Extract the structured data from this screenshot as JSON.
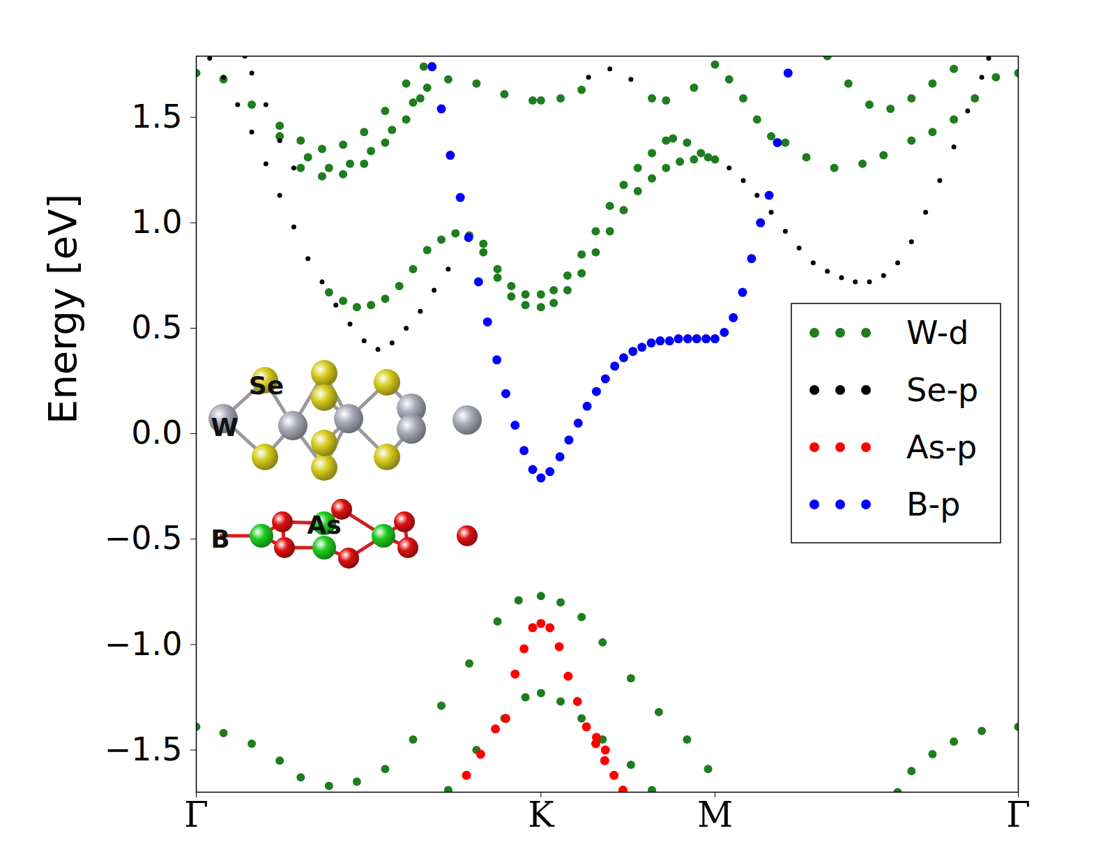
{
  "chart_data": {
    "type": "scatter",
    "y_label": "Energy [eV]",
    "xlim": [
      0,
      2.385
    ],
    "ylim": [
      -1.7,
      1.79
    ],
    "xticks": [
      {
        "value": 0,
        "label": "Γ"
      },
      {
        "value": 1,
        "label": "K"
      },
      {
        "value": 1.505,
        "label": "M"
      },
      {
        "value": 2.385,
        "label": "Γ"
      }
    ],
    "yticks": [
      {
        "value": -1.5,
        "label": "−1.5"
      },
      {
        "value": -1,
        "label": "−1.0"
      },
      {
        "value": -0.5,
        "label": "−0.5"
      },
      {
        "value": 0,
        "label": "0.0"
      },
      0.5,
      {
        "value": 1,
        "label": "1.0"
      },
      1.5
    ],
    "grid": false,
    "legend": "right",
    "annotations": [
      "Se",
      "W",
      "B",
      "As"
    ],
    "series": [
      {
        "name": "W-d",
        "color": "#1e7d1e",
        "marker": "o",
        "x": [
          0.385,
          0.426,
          0.466,
          0.507,
          0.548,
          0.589,
          0.629,
          0.67,
          0.711,
          0.752,
          0.792,
          0.833,
          0.874,
          0.914,
          0.955,
          1.0,
          1.037,
          1.077,
          1.118,
          1.159,
          1.2,
          1.24,
          1.281,
          1.322,
          1.363,
          1.403,
          1.444,
          1.485,
          1.505,
          0.833,
          0.874,
          0.914,
          0.955,
          1.0,
          1.037,
          1.077,
          1.118,
          1.159,
          1.2,
          1.24,
          1.281,
          1.322,
          1.363,
          1.383,
          1.424,
          1.464,
          0,
          0.079,
          0.161,
          0.242,
          0.303,
          0.365,
          0.426,
          0.487,
          0.548,
          0.609,
          0.66,
          0.731,
          0.813,
          0.894,
          0.976,
          1.0,
          1.057,
          1.118,
          1.322,
          1.363,
          1.444,
          1.505,
          1.546,
          1.587,
          1.627,
          1.668,
          1.709,
          1.77,
          1.851,
          1.933,
          1.994,
          2.075,
          2.136,
          2.198,
          2.259,
          2.32,
          2.385,
          1.831,
          1.892,
          1.953,
          2.014,
          2.075,
          2.136,
          2.198,
          0.242,
          0.324,
          0.385,
          0.446,
          0.507,
          0.568,
          0.629,
          0.67,
          0.303,
          0.365,
          0.426,
          0.487,
          0.548,
          0.609,
          0.65,
          0,
          0.079,
          0.161,
          0.242,
          0.303,
          0.385,
          0.466,
          0.548,
          0.629,
          0.711,
          0.792,
          0.874,
          0.935,
          1.0,
          1.057,
          1.118,
          1.179,
          1.261,
          1.342,
          1.424,
          1.485,
          2.035,
          2.075,
          2.136,
          2.198,
          2.279,
          2.385,
          0.731,
          0.813,
          0.894,
          0.955,
          1.0,
          1.057,
          1.118,
          1.179,
          1.261,
          1.322
        ],
        "values": [
          0.67,
          0.63,
          0.6,
          0.61,
          0.64,
          0.7,
          0.78,
          0.87,
          0.92,
          0.95,
          0.94,
          0.86,
          0.74,
          0.65,
          0.61,
          0.6,
          0.62,
          0.68,
          0.76,
          0.86,
          0.96,
          1.06,
          1.15,
          1.21,
          1.26,
          1.29,
          1.3,
          1.31,
          1.3,
          0.9,
          0.78,
          0.7,
          0.66,
          0.66,
          0.68,
          0.75,
          0.85,
          0.96,
          1.08,
          1.18,
          1.26,
          1.33,
          1.39,
          1.4,
          1.38,
          1.33,
          1.71,
          1.68,
          1.56,
          1.46,
          1.39,
          1.35,
          1.37,
          1.43,
          1.53,
          1.66,
          1.74,
          1.68,
          1.66,
          1.61,
          1.58,
          1.58,
          1.59,
          1.63,
          1.59,
          1.58,
          1.64,
          1.75,
          1.68,
          1.59,
          1.49,
          1.41,
          1.38,
          1.31,
          1.26,
          1.28,
          1.32,
          1.39,
          1.43,
          1.49,
          1.59,
          1.69,
          1.71,
          1.79,
          1.66,
          1.56,
          1.54,
          1.59,
          1.66,
          1.73,
          1.41,
          1.31,
          1.26,
          1.28,
          1.34,
          1.44,
          1.57,
          1.64,
          1.26,
          1.22,
          1.23,
          1.28,
          1.38,
          1.49,
          1.59,
          -1.39,
          -1.42,
          -1.47,
          -1.55,
          -1.63,
          -1.67,
          -1.65,
          -1.59,
          -1.45,
          -1.29,
          -1.09,
          -0.89,
          -0.79,
          -0.77,
          -0.8,
          -0.87,
          -0.99,
          -1.16,
          -1.32,
          -1.45,
          -1.59,
          -1.7,
          -1.6,
          -1.52,
          -1.46,
          -1.41,
          -1.39,
          -1.69,
          -1.5,
          -1.35,
          -1.25,
          -1.23,
          -1.27,
          -1.35,
          -1.45,
          -1.57,
          -1.69
        ]
      },
      {
        "name": "Se-p",
        "color": "#000000",
        "marker": "o",
        "x": [
          0.039,
          0.079,
          0.12,
          0.161,
          0.202,
          0.242,
          0.283,
          0.324,
          0.365,
          0.405,
          0.446,
          0.487,
          0.527,
          0.568,
          0.609,
          0.65,
          0.69,
          0.731,
          0.141,
          0.161,
          0.202,
          0.242,
          0.283,
          1.138,
          1.2,
          1.261,
          1.546,
          1.587,
          1.627,
          1.668,
          1.709,
          1.749,
          1.79,
          1.831,
          1.872,
          1.912,
          1.953,
          1.994,
          2.035,
          2.075,
          2.116,
          2.157,
          2.198,
          2.238,
          2.279,
          2.299
        ],
        "values": [
          1.78,
          1.69,
          1.56,
          1.43,
          1.28,
          1.13,
          0.98,
          0.83,
          0.72,
          0.61,
          0.52,
          0.44,
          0.4,
          0.43,
          0.5,
          0.58,
          0.68,
          0.78,
          1.79,
          1.71,
          1.56,
          1.39,
          1.26,
          1.69,
          1.73,
          1.68,
          1.26,
          1.2,
          1.13,
          1.05,
          0.96,
          0.88,
          0.81,
          0.77,
          0.74,
          0.72,
          0.72,
          0.75,
          0.81,
          0.91,
          1.05,
          1.2,
          1.36,
          1.53,
          1.69,
          1.78
        ]
      },
      {
        "name": "As-p",
        "color": "#ff0000",
        "marker": "o",
        "x": [
          0.898,
          0.925,
          0.951,
          0.976,
          1.0,
          1.026,
          1.053,
          1.079,
          1.106,
          1.132,
          1.159,
          1.185,
          1.212,
          1.238,
          0.784,
          0.825,
          0.868,
          1.161,
          1.187
        ],
        "values": [
          -1.35,
          -1.14,
          -1.02,
          -0.92,
          -0.9,
          -0.92,
          -1.01,
          -1.15,
          -1.27,
          -1.39,
          -1.47,
          -1.55,
          -1.62,
          -1.69,
          -1.62,
          -1.52,
          -1.4,
          -1.44,
          -1.5
        ]
      },
      {
        "name": "B-p",
        "color": "#0000ff",
        "marker": "o",
        "x": [
          0.684,
          0.711,
          0.737,
          0.766,
          0.79,
          0.819,
          0.845,
          0.872,
          0.898,
          0.925,
          0.951,
          0.976,
          1.0,
          1.026,
          1.055,
          1.081,
          1.108,
          1.134,
          1.161,
          1.187,
          1.214,
          1.24,
          1.267,
          1.293,
          1.32,
          1.346,
          1.373,
          1.399,
          1.426,
          1.452,
          1.479,
          1.505,
          1.532,
          1.558,
          1.585,
          1.611,
          1.637,
          1.662,
          1.686,
          1.717
        ],
        "values": [
          1.74,
          1.54,
          1.32,
          1.12,
          0.93,
          0.72,
          0.53,
          0.35,
          0.19,
          0.04,
          -0.08,
          -0.17,
          -0.21,
          -0.18,
          -0.11,
          -0.03,
          0.05,
          0.13,
          0.2,
          0.26,
          0.32,
          0.36,
          0.39,
          0.41,
          0.43,
          0.44,
          0.44,
          0.45,
          0.45,
          0.45,
          0.45,
          0.45,
          0.48,
          0.55,
          0.67,
          0.83,
          1.0,
          1.13,
          1.38,
          1.71
        ]
      }
    ]
  }
}
